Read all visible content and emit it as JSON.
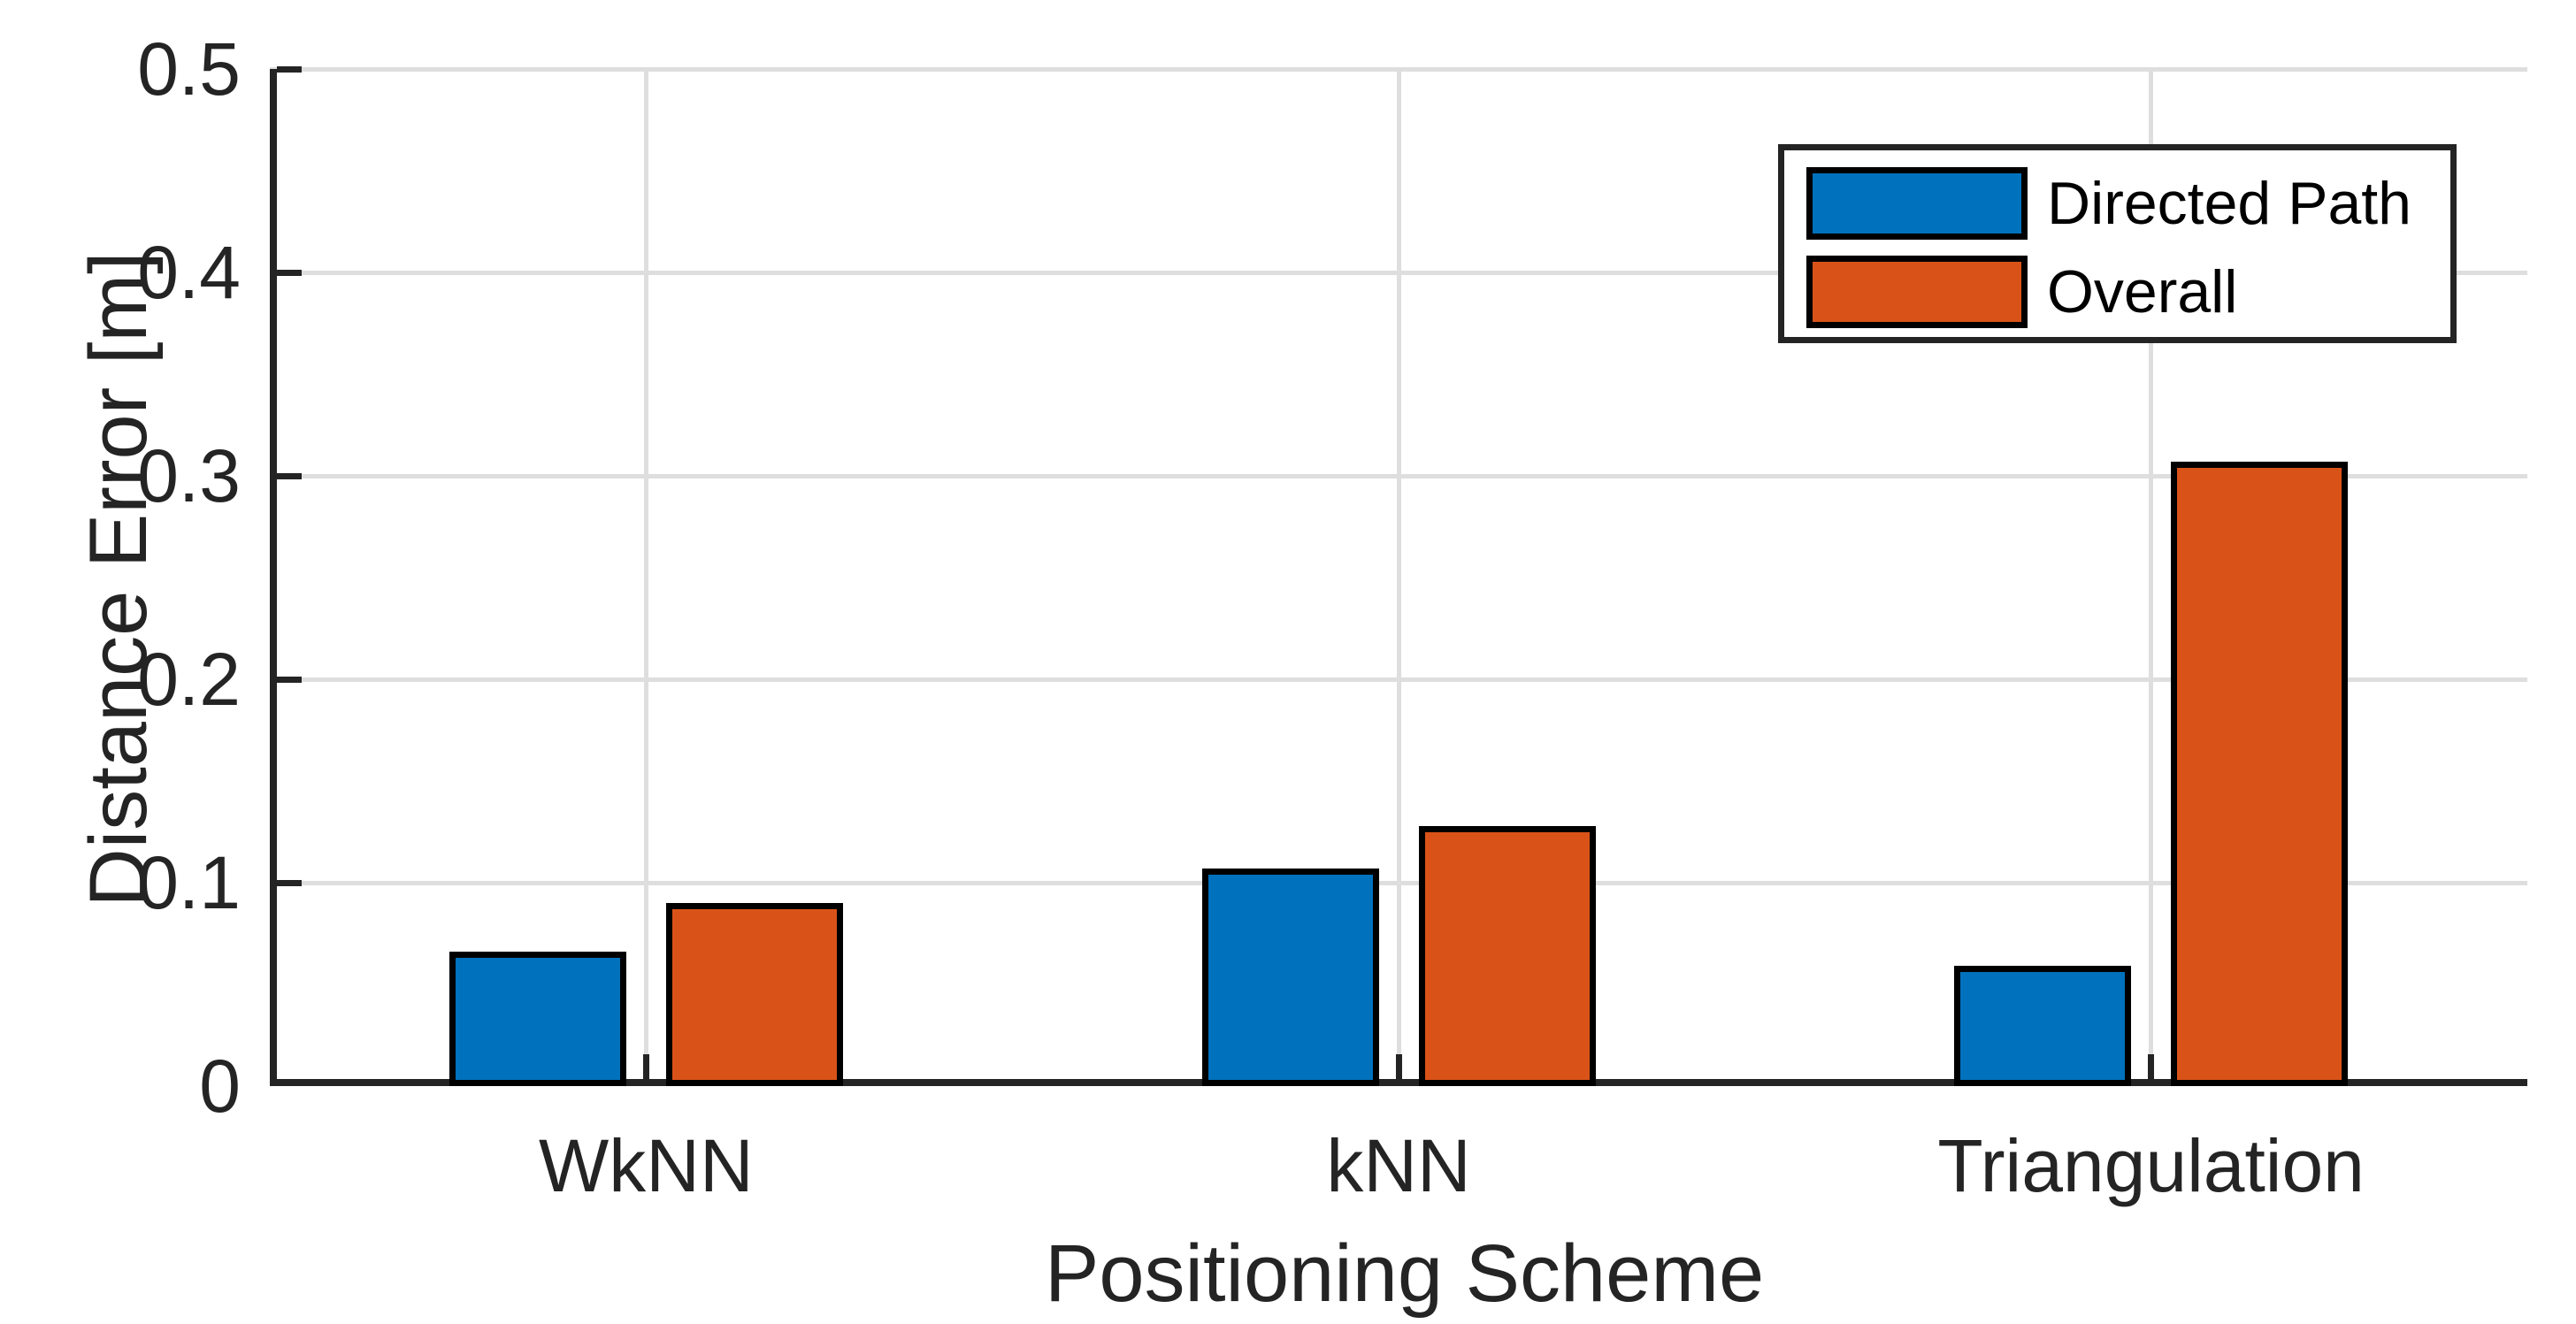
{
  "chart_data": {
    "type": "bar",
    "title": "",
    "xlabel": "Positioning Scheme",
    "ylabel": "Distance Error [m]",
    "categories": [
      "WkNN",
      "kNN",
      "Triangulation"
    ],
    "series": [
      {
        "name": "Directed Path",
        "color": "#0072BD",
        "values": [
          0.066,
          0.107,
          0.059
        ]
      },
      {
        "name": "Overall",
        "color": "#D95319",
        "values": [
          0.09,
          0.128,
          0.307
        ]
      }
    ],
    "ylim": [
      0,
      0.5
    ],
    "yticks": [
      0,
      0.1,
      0.2,
      0.3,
      0.4,
      0.5
    ],
    "ytick_labels": [
      "0",
      "0.1",
      "0.2",
      "0.3",
      "0.4",
      "0.5"
    ],
    "grid": true,
    "grid_color": "#dedede",
    "axis_color": "#242424",
    "bar_edge_color": "#000000",
    "legend_position": "top-right",
    "legend_labels": [
      "Directed Path",
      "Overall"
    ]
  }
}
